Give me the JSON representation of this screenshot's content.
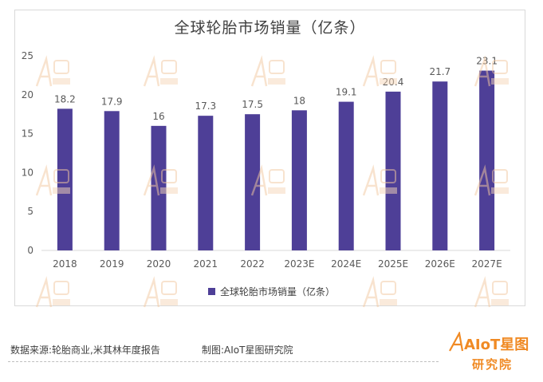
{
  "colors": {
    "bar": "#4e3f97",
    "grid": "#d9d9d9",
    "text": "#595959",
    "brand": "#f08a24"
  },
  "chart_data": {
    "type": "bar",
    "title": "全球轮胎市场销量（亿条）",
    "categories": [
      "2018",
      "2019",
      "2020",
      "2021",
      "2022",
      "2023E",
      "2024E",
      "2025E",
      "2026E",
      "2027E"
    ],
    "series": [
      {
        "name": "全球轮胎市场销量（亿条）",
        "values": [
          18.2,
          17.9,
          16,
          17.3,
          17.5,
          18,
          19.1,
          20.4,
          21.7,
          23.1
        ]
      }
    ],
    "value_labels": [
      "18.2",
      "17.9",
      "16",
      "17.3",
      "17.5",
      "18",
      "19.1",
      "20.4",
      "21.7",
      "23.1"
    ],
    "ylim": [
      0,
      25
    ],
    "yticks": [
      0,
      5,
      10,
      15,
      20,
      25
    ],
    "grid": false,
    "legend": "bottom",
    "xlabel": "",
    "ylabel": ""
  },
  "footer": {
    "source": "数据来源:轮胎商业,米其林年度报告",
    "credit": "制图:AIoT星图研究院"
  },
  "logo": {
    "brand": "AIoT星图",
    "sub": "研究院"
  }
}
